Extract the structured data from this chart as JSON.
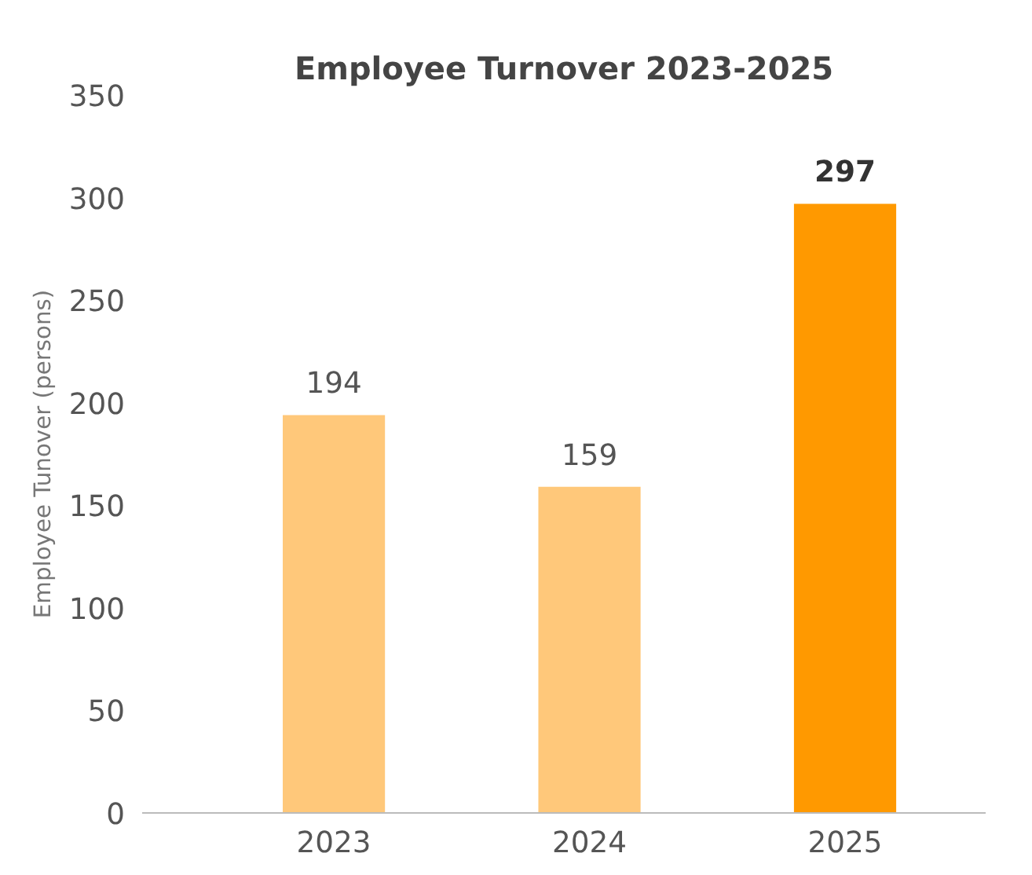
{
  "chart_data": {
    "type": "bar",
    "title": "Employee Turnover 2023-2025",
    "ylabel": "Employee Tunover (persons)",
    "categories": [
      "2023",
      "2024",
      "2025"
    ],
    "values": [
      194,
      159,
      297
    ],
    "colors": [
      "#ffc87a",
      "#ffc87a",
      "#ff9900"
    ],
    "ylim": [
      0,
      350
    ],
    "yticks": [
      0,
      50,
      100,
      150,
      200,
      250,
      300,
      350
    ],
    "grid": false,
    "data_labels": true
  }
}
